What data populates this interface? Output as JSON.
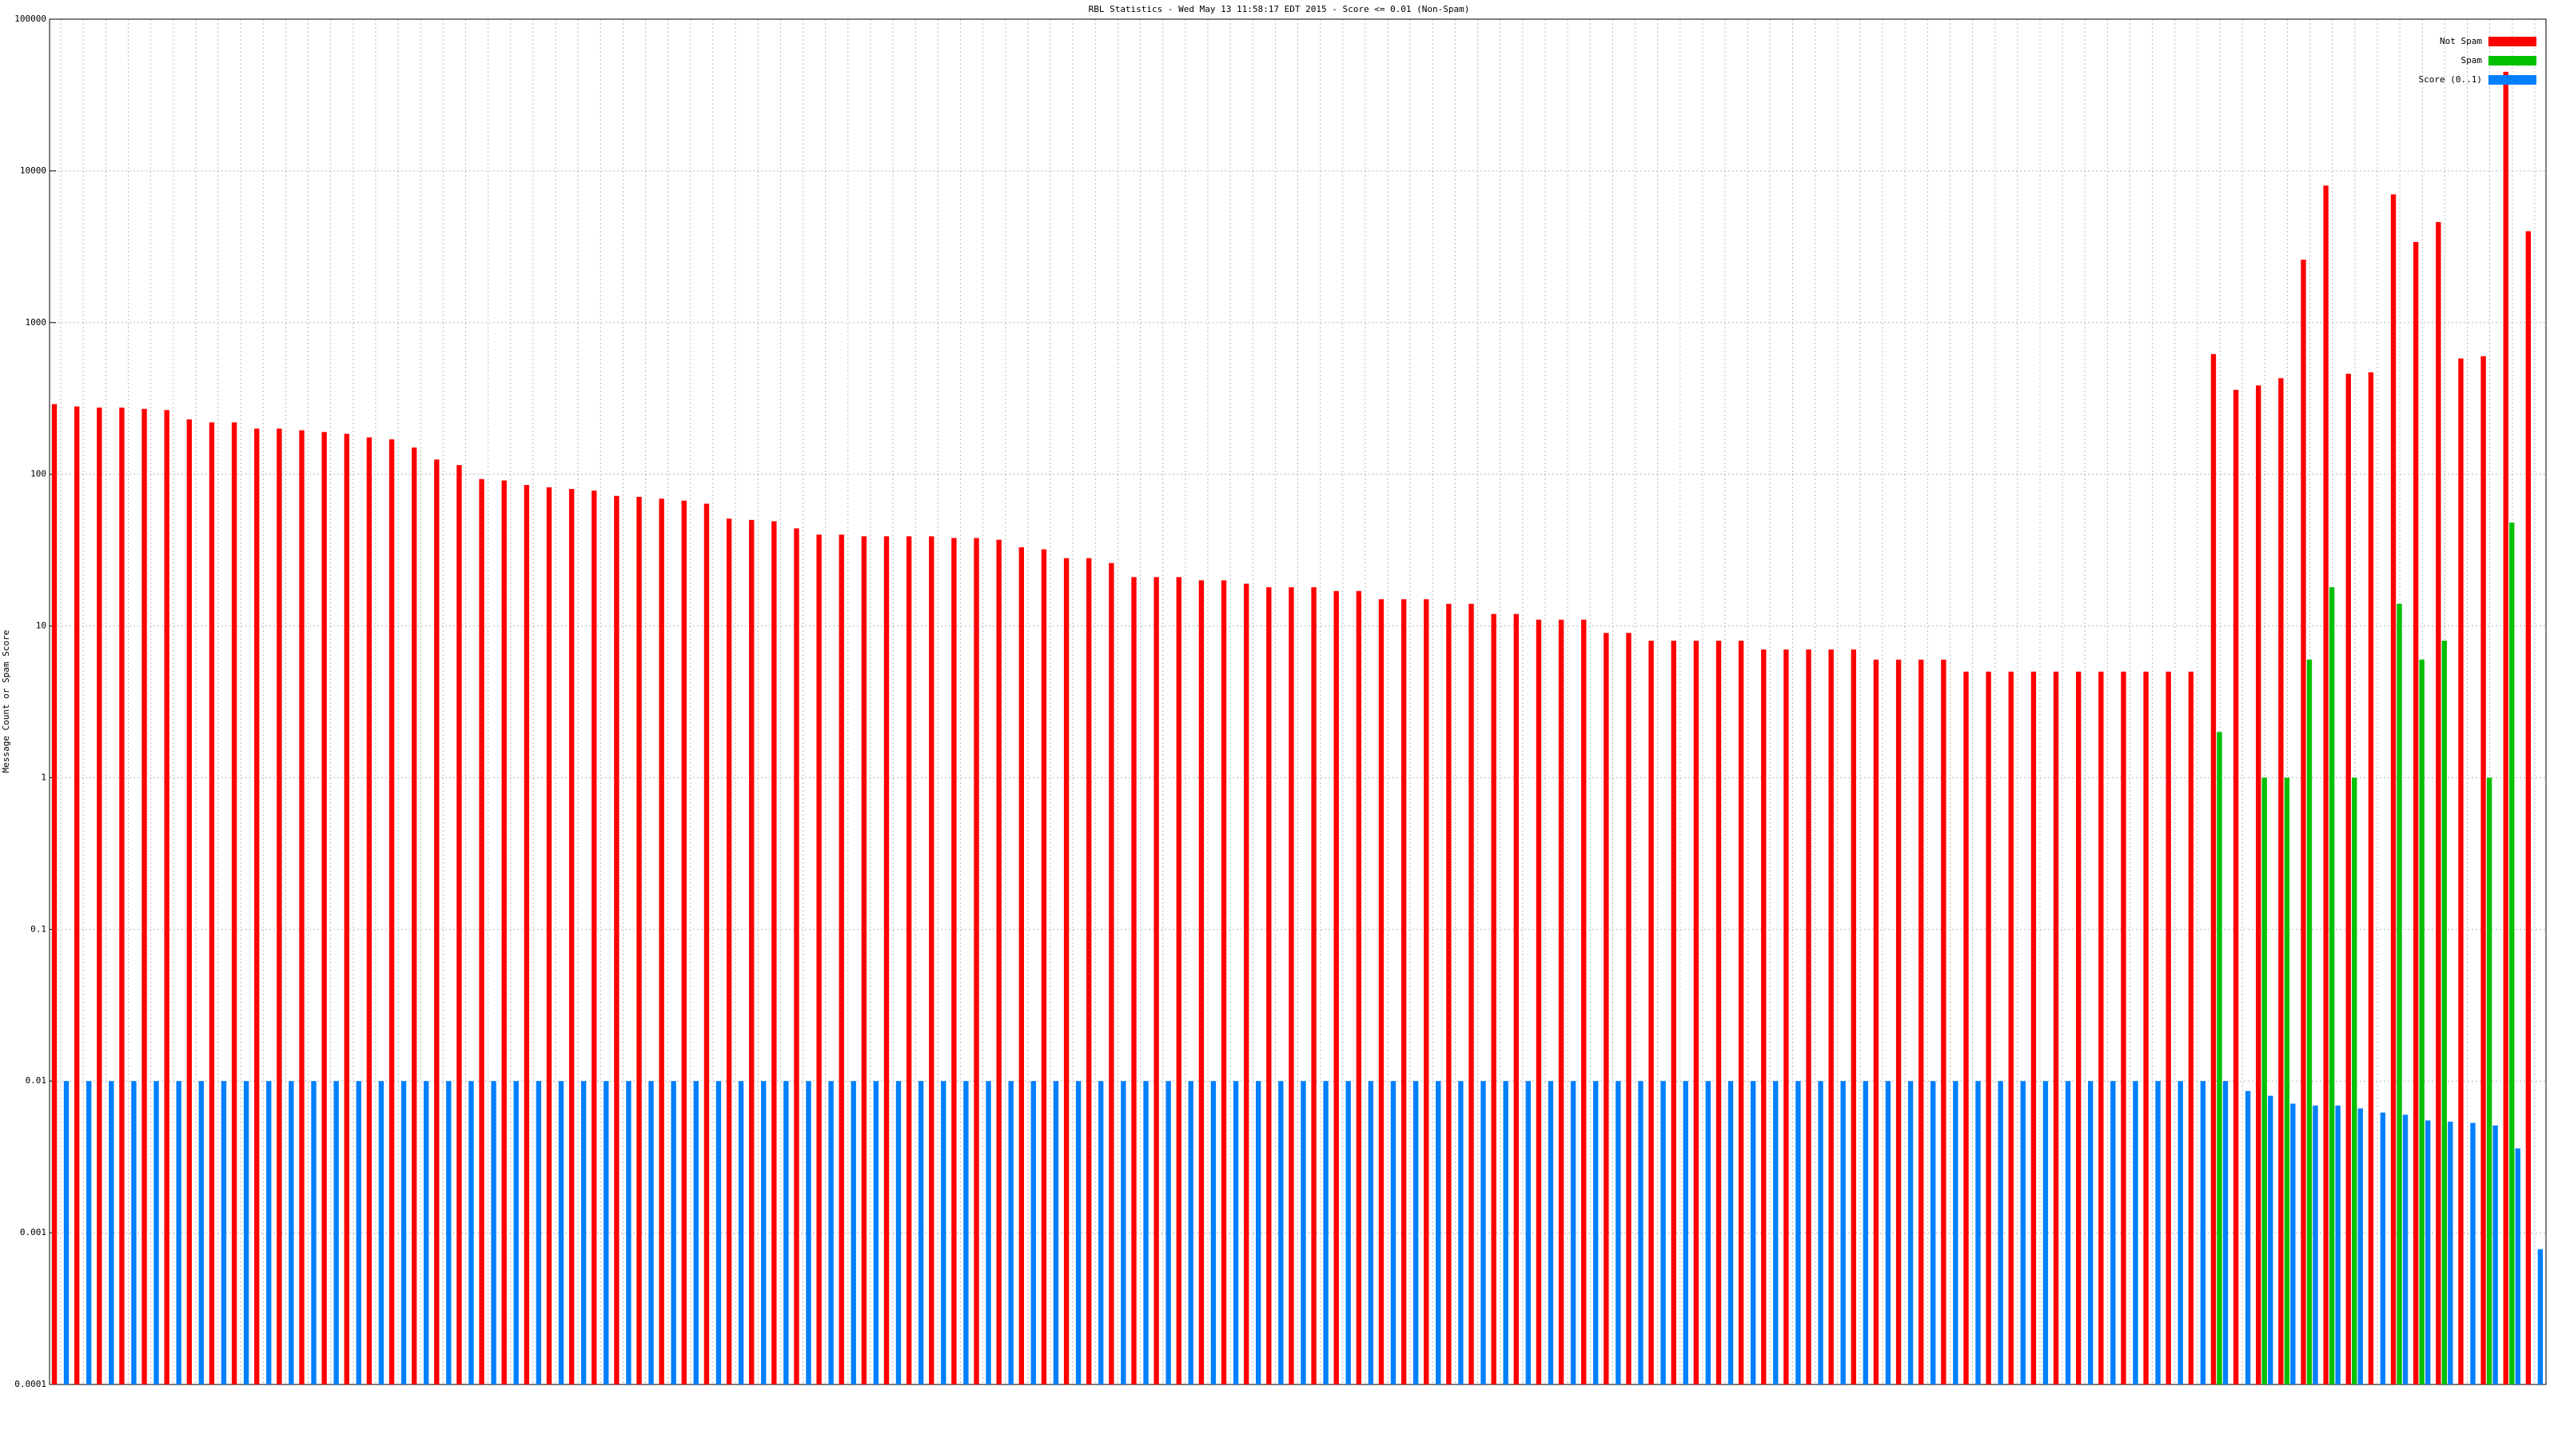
{
  "chart_data": {
    "type": "bar",
    "title": "RBL Statistics - Wed May 13 11:58:17 EDT 2015 - Score <= 0.01 (Non-Spam)",
    "y_label": "Message Count or Spam Score",
    "log_scale": true,
    "grid": true,
    "legend": "upper right",
    "ylim": [
      0.0001,
      100000
    ],
    "yticks": [
      0.0001,
      0.001,
      0.01,
      0.1,
      1,
      10,
      100,
      1000,
      10000,
      100000
    ],
    "categories": [
      null,
      null,
      null,
      null,
      null,
      null,
      null,
      null,
      null,
      null,
      null,
      null,
      null,
      null,
      null,
      null,
      null,
      null,
      null,
      null,
      null,
      null,
      null,
      null,
      null,
      null,
      null,
      null,
      null,
      null,
      null,
      null,
      null,
      null,
      null,
      null,
      null,
      null,
      null,
      null,
      null,
      null,
      null,
      null,
      null,
      null,
      null,
      null,
      null,
      null,
      null,
      null,
      null,
      null,
      null,
      null,
      null,
      null,
      null,
      null,
      null,
      null,
      null,
      null,
      null,
      null,
      null,
      null,
      null,
      null,
      null,
      null,
      null,
      null,
      null,
      null,
      null,
      null,
      null,
      null,
      null,
      null,
      null,
      null,
      null,
      null,
      null,
      null,
      null,
      null,
      null,
      null,
      null,
      null,
      null,
      null,
      null,
      null,
      null,
      null,
      null,
      null,
      null,
      null,
      null,
      null,
      null,
      null,
      null,
      null,
      null
    ],
    "series": [
      {
        "name": "Not Spam",
        "color": "#ff0000",
        "values": [
          290,
          280,
          275,
          275,
          270,
          265,
          230,
          220,
          220,
          200,
          200,
          195,
          190,
          185,
          175,
          170,
          150,
          125,
          115,
          93,
          91,
          85,
          82,
          80,
          78,
          72,
          71,
          69,
          67,
          64,
          51,
          50,
          49,
          44,
          40,
          40,
          39,
          39,
          39,
          39,
          38,
          38,
          37,
          33,
          32,
          28,
          28,
          26,
          21,
          21,
          21,
          20,
          20,
          19,
          18,
          18,
          18,
          17,
          17,
          15,
          15,
          15,
          14,
          14,
          12,
          12,
          11,
          11,
          11,
          9,
          9,
          8,
          8,
          8,
          8,
          8,
          7,
          7,
          7,
          7,
          7,
          6,
          6,
          6,
          6,
          5,
          5,
          5,
          5,
          5,
          5,
          5,
          5,
          5,
          5,
          5,
          620,
          360,
          385,
          430,
          2600,
          8000,
          460,
          470,
          7000,
          3400,
          4600,
          580,
          600,
          45000,
          4000
        ]
      },
      {
        "name": "Spam",
        "color": "#00c000",
        "values": [
          0,
          0,
          0,
          0,
          0,
          0,
          0,
          0,
          0,
          0,
          0,
          0,
          0,
          0,
          0,
          0,
          0,
          0,
          0,
          0,
          0,
          0,
          0,
          0,
          0,
          0,
          0,
          0,
          0,
          0,
          0,
          0,
          0,
          0,
          0,
          0,
          0,
          0,
          0,
          0,
          0,
          0,
          0,
          0,
          0,
          0,
          0,
          0,
          0,
          0,
          0,
          0,
          0,
          0,
          0,
          0,
          0,
          0,
          0,
          0,
          0,
          0,
          0,
          0,
          0,
          0,
          0,
          0,
          0,
          0,
          0,
          0,
          0,
          0,
          0,
          0,
          0,
          0,
          0,
          0,
          0,
          0,
          0,
          0,
          0,
          0,
          0,
          0,
          0,
          0,
          0,
          0,
          0,
          0,
          0,
          0,
          2,
          0,
          1,
          1,
          6,
          18,
          1,
          0,
          14,
          6,
          8,
          0,
          1,
          48,
          0
        ]
      },
      {
        "name": "Score (0..1)",
        "color": "#0080ff",
        "values": [
          0.01,
          0.01,
          0.01,
          0.01,
          0.01,
          0.01,
          0.01,
          0.01,
          0.01,
          0.01,
          0.01,
          0.01,
          0.01,
          0.01,
          0.01,
          0.01,
          0.01,
          0.01,
          0.01,
          0.01,
          0.01,
          0.01,
          0.01,
          0.01,
          0.01,
          0.01,
          0.01,
          0.01,
          0.01,
          0.01,
          0.01,
          0.01,
          0.01,
          0.01,
          0.01,
          0.01,
          0.01,
          0.01,
          0.01,
          0.01,
          0.01,
          0.01,
          0.01,
          0.01,
          0.01,
          0.01,
          0.01,
          0.01,
          0.01,
          0.01,
          0.01,
          0.01,
          0.01,
          0.01,
          0.01,
          0.01,
          0.01,
          0.01,
          0.01,
          0.01,
          0.01,
          0.01,
          0.01,
          0.01,
          0.01,
          0.01,
          0.01,
          0.01,
          0.01,
          0.01,
          0.01,
          0.01,
          0.01,
          0.01,
          0.01,
          0.01,
          0.01,
          0.01,
          0.01,
          0.01,
          0.01,
          0.01,
          0.01,
          0.01,
          0.01,
          0.01,
          0.01,
          0.01,
          0.01,
          0.01,
          0.01,
          0.01,
          0.01,
          0.01,
          0.01,
          0.01,
          0.01,
          0.0086,
          0.008,
          0.0071,
          0.0069,
          0.0069,
          0.0066,
          0.0062,
          0.006,
          0.0055,
          0.0054,
          0.0053,
          0.0051,
          0.0036,
          0.00078
        ]
      }
    ]
  }
}
